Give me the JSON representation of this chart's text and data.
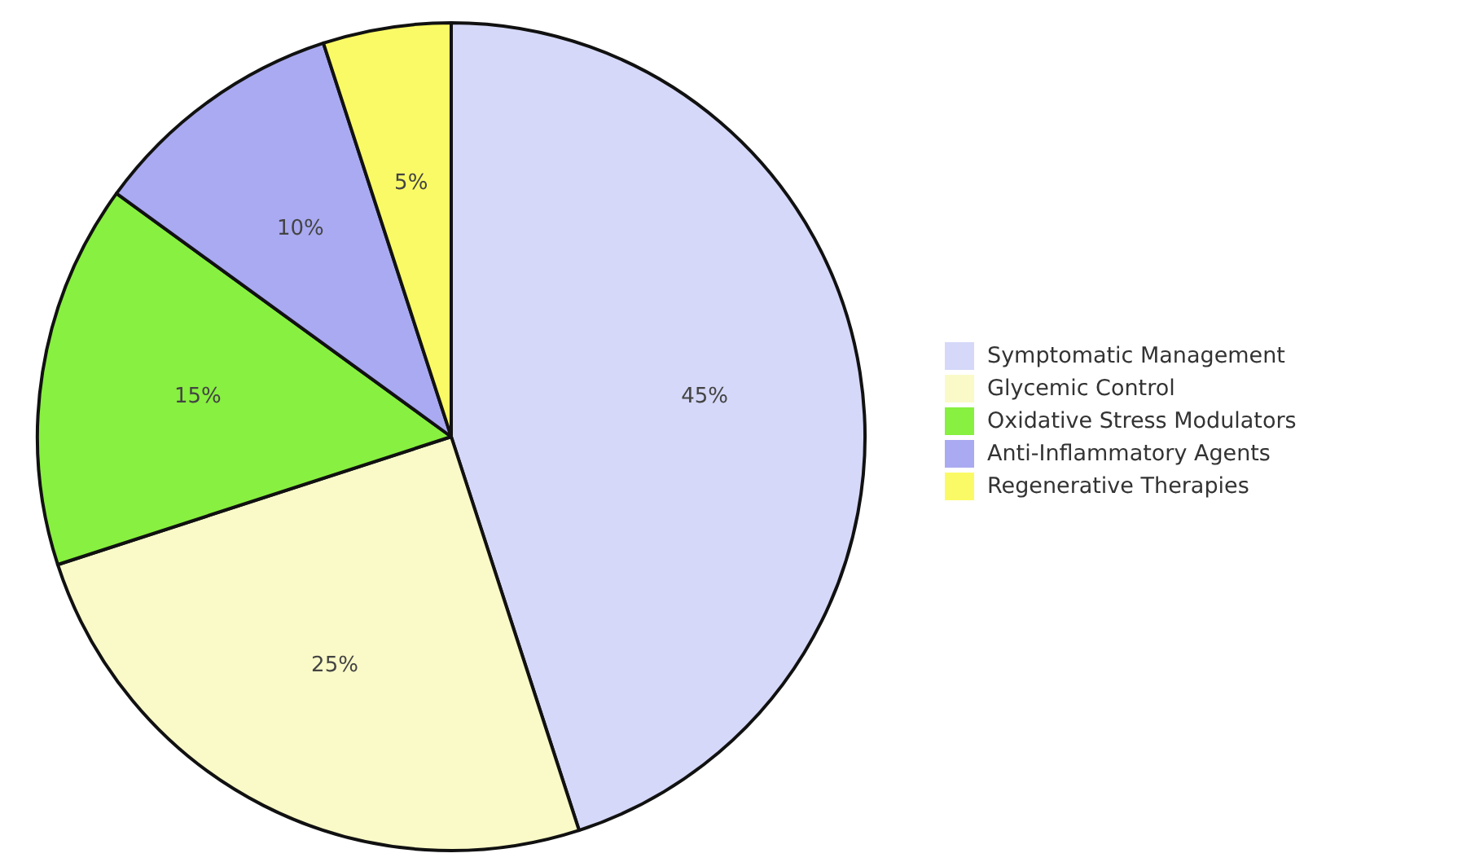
{
  "chart_data": {
    "type": "pie",
    "categories": [
      "Symptomatic Management",
      "Glycemic Control",
      "Oxidative Stress Modulators",
      "Anti-Inflammatory Agents",
      "Regenerative Therapies"
    ],
    "values": [
      45,
      25,
      15,
      10,
      5
    ],
    "colors": [
      "#d5d8f8",
      "#fafac8",
      "#88f040",
      "#aaaaf2",
      "#fafa66"
    ],
    "value_labels": [
      "45%",
      "25%",
      "15%",
      "10%",
      "5%"
    ],
    "legend": "right"
  }
}
